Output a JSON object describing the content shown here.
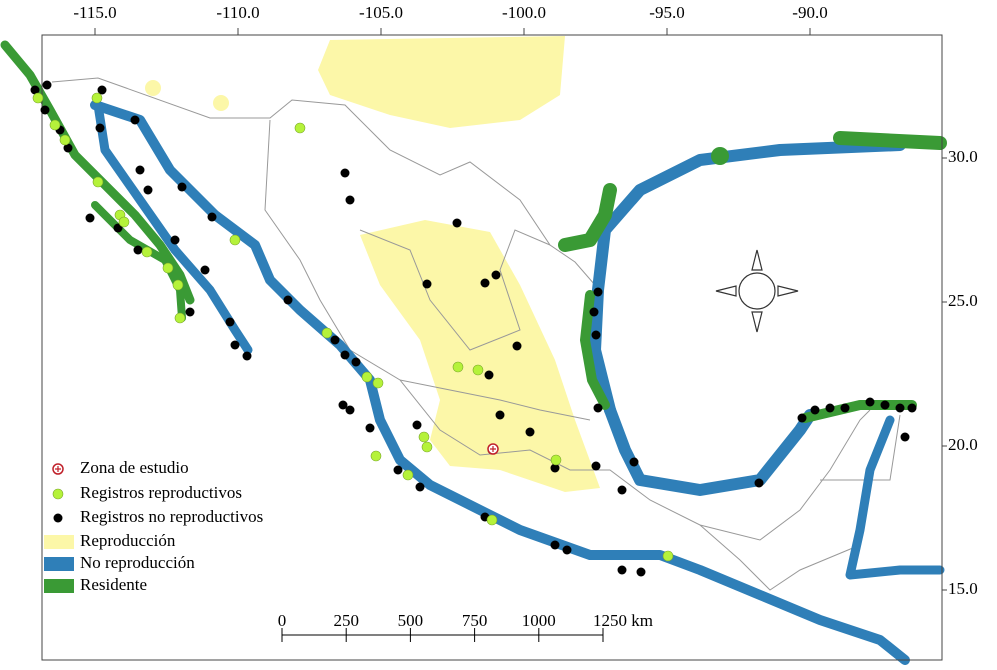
{
  "map": {
    "xticks": [
      {
        "value": -115,
        "label": "-115.0"
      },
      {
        "value": -110,
        "label": "-110.0"
      },
      {
        "value": -105,
        "label": "-105.0"
      },
      {
        "value": -100,
        "label": "-100.0"
      },
      {
        "value": -95,
        "label": "-95.0"
      },
      {
        "value": -90,
        "label": "-90.0"
      }
    ],
    "yticks": [
      {
        "value": 30,
        "label": "30.0"
      },
      {
        "value": 25,
        "label": "25.0"
      },
      {
        "value": 20,
        "label": "20.0"
      },
      {
        "value": 15,
        "label": "15.0"
      }
    ],
    "legend": [
      "Zona de estudio",
      "Registros reproductivos",
      "Registros no reproductivos",
      "Reproducción",
      "No reproducción",
      "Residente"
    ],
    "scale_bar": {
      "ticks": [
        0,
        250,
        500,
        750,
        1000,
        {
          "value": 1250,
          "label": "1250 km"
        }
      ]
    }
  }
}
